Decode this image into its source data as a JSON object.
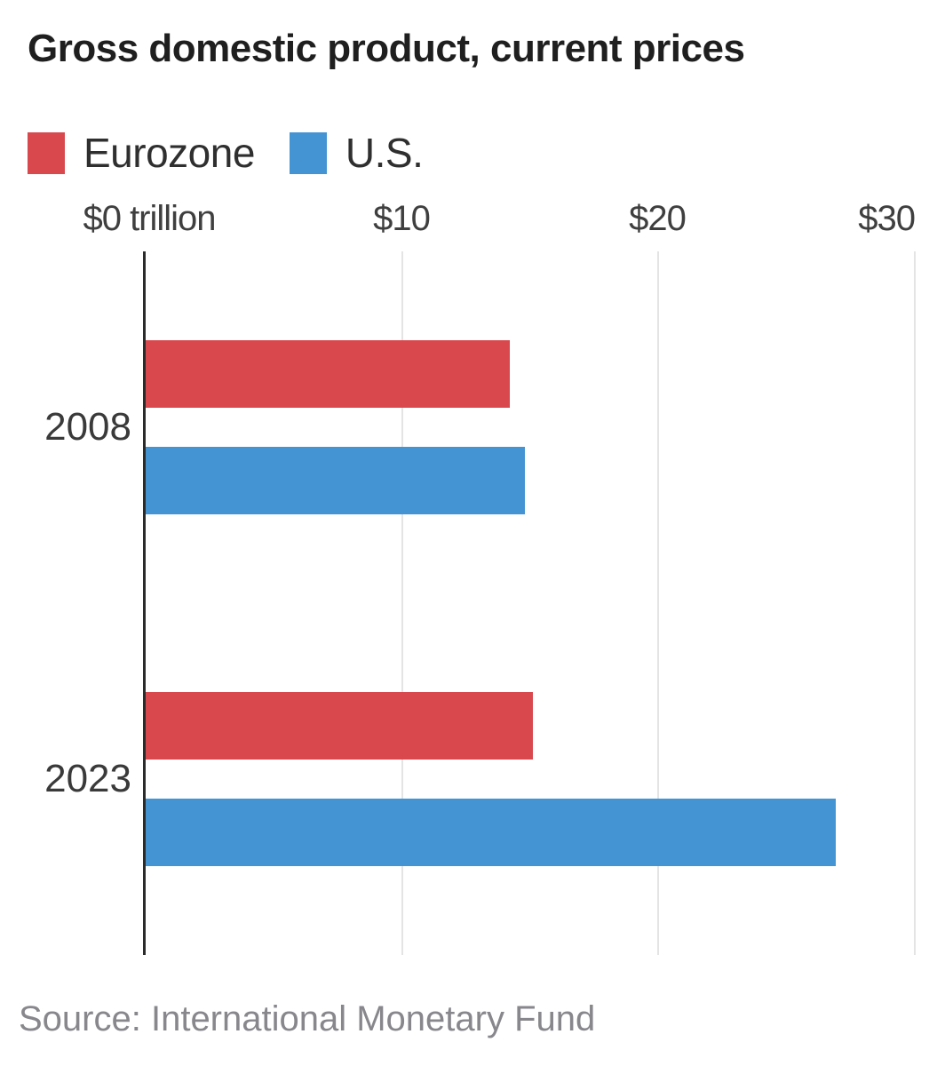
{
  "title": "Gross domestic product, current prices",
  "legend": [
    {
      "label": "Eurozone",
      "color": "#d8484d"
    },
    {
      "label": "U.S.",
      "color": "#4493d3"
    }
  ],
  "axis": {
    "tick_labels": [
      "$0 trillion",
      "$10",
      "$20",
      "$30"
    ],
    "tick_values": [
      0,
      10,
      20,
      30
    ]
  },
  "source": "Source: International Monetary Fund",
  "colors": {
    "eurozone": "#d8484d",
    "us": "#4493d3",
    "axis_line": "#2b2b2b",
    "gridline": "#e4e4e4",
    "title_text": "#1f1f1f",
    "source_text": "#87878c"
  },
  "chart_data": {
    "type": "bar",
    "orientation": "horizontal",
    "title": "Gross domestic product, current prices",
    "unit": "trillion USD, current prices",
    "categories": [
      "2008",
      "2023"
    ],
    "series": [
      {
        "name": "Eurozone",
        "color": "#d8484d",
        "values": [
          14.2,
          15.1
        ]
      },
      {
        "name": "U.S.",
        "color": "#4493d3",
        "values": [
          14.8,
          26.9
        ]
      }
    ],
    "xlabel": "$ trillion",
    "ylabel": "",
    "xlim": [
      0,
      31.2
    ],
    "grid": true,
    "legend_position": "top",
    "source": "International Monetary Fund"
  }
}
